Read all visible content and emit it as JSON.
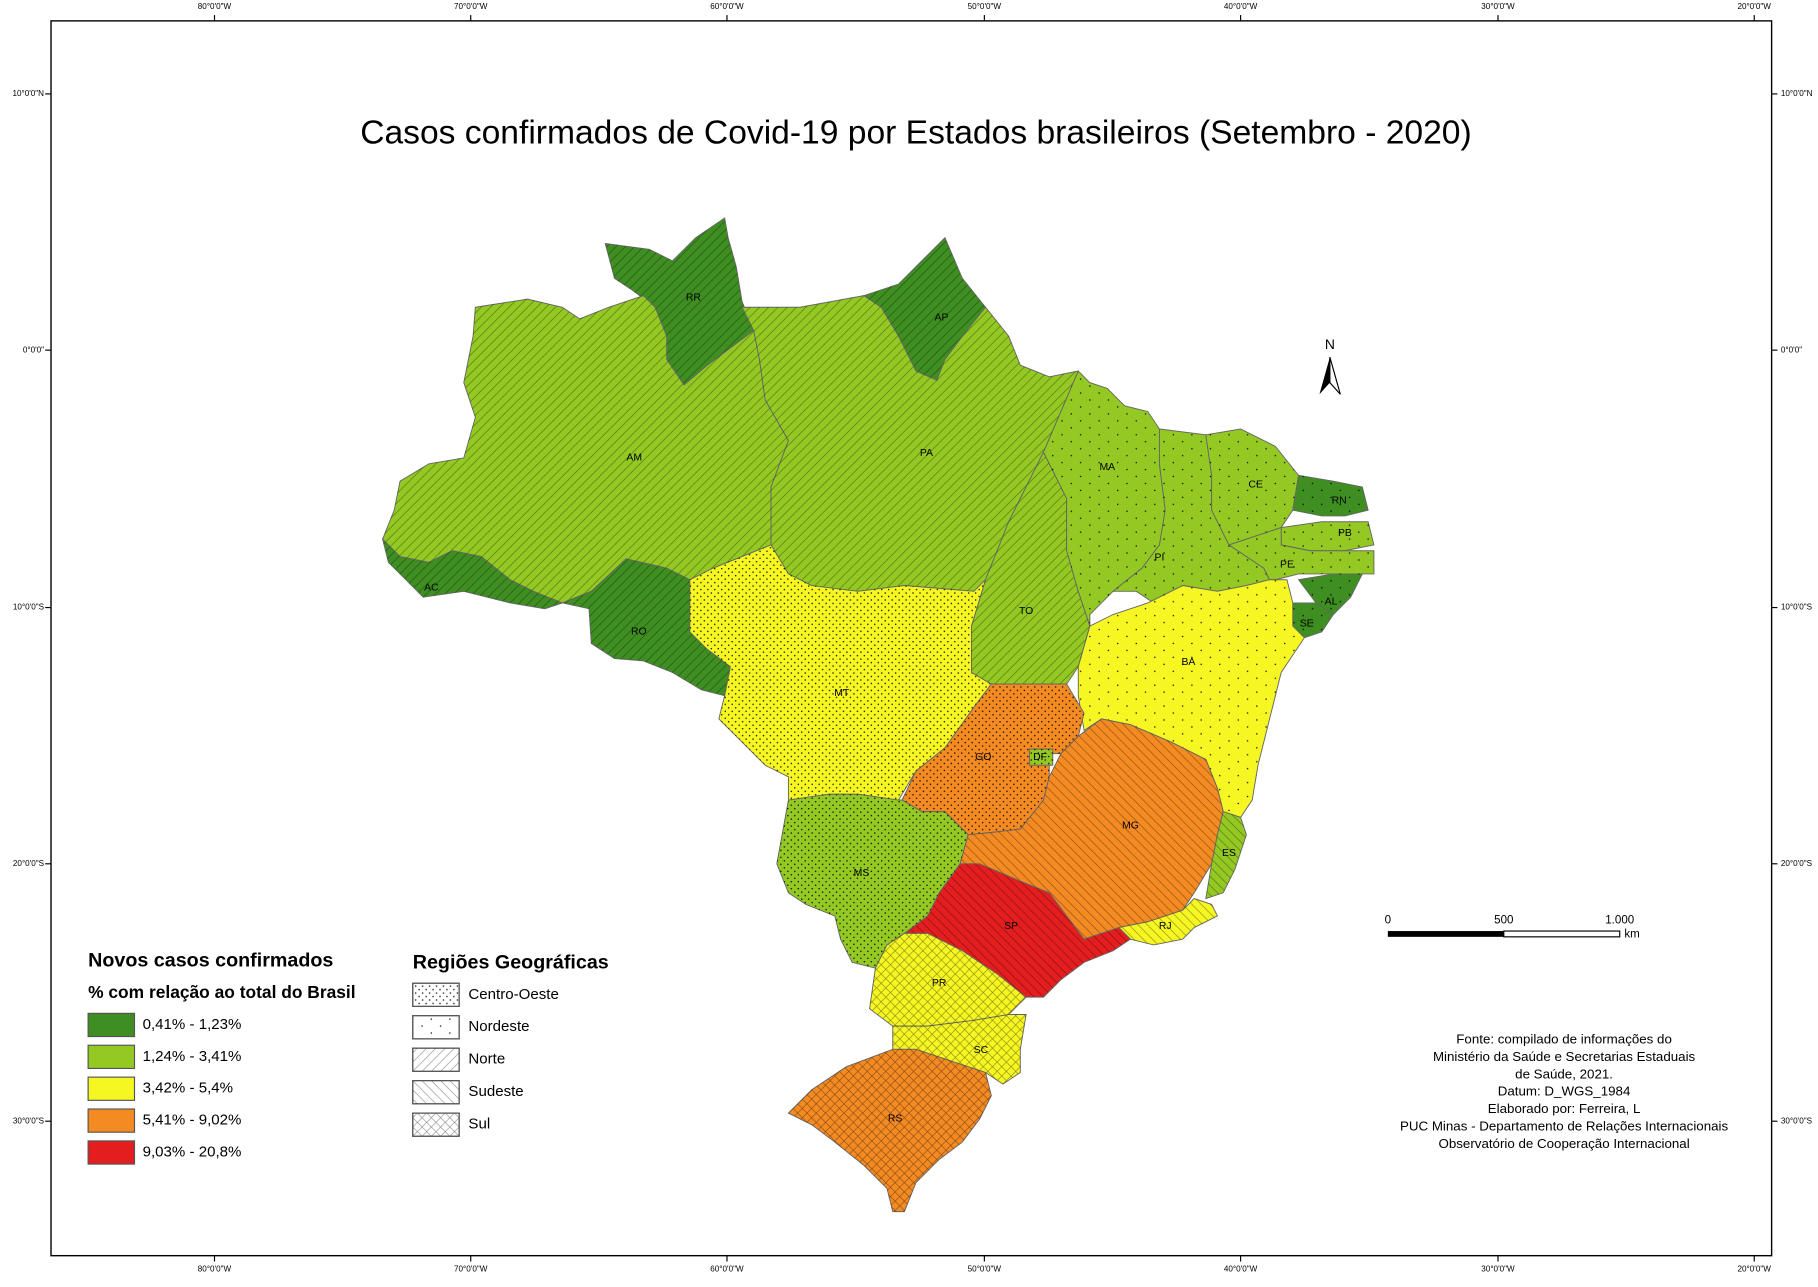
{
  "title": "Casos confirmados de Covid-19 por Estados brasileiros (Setembro - 2020)",
  "graticule": {
    "longitudes": [
      "80°0'0\"W",
      "70°0'0\"W",
      "60°0'0\"W",
      "50°0'0\"W",
      "40°0'0\"W",
      "30°0'0\"W",
      "20°0'0\"W"
    ],
    "latitudes": [
      "10°0'0\"N",
      "0°0'0\"",
      "10°0'0\"S",
      "20°0'0\"S",
      "30°0'0\"S"
    ]
  },
  "legend": {
    "title": "Novos casos confirmados",
    "subtitle": "% com relação ao total do Brasil",
    "items": [
      {
        "label": "0,41% - 1,23%",
        "color": "#3e8e22"
      },
      {
        "label": "1,24% - 3,41%",
        "color": "#93c922"
      },
      {
        "label": "3,42% - 5,4%",
        "color": "#f6f622"
      },
      {
        "label": "5,41% - 9,02%",
        "color": "#f48a22"
      },
      {
        "label": "9,03% - 20,8%",
        "color": "#e41e1e"
      }
    ]
  },
  "regions_legend": {
    "title": "Regiões Geográficas",
    "items": [
      "Centro-Oeste",
      "Nordeste",
      "Norte",
      "Sudeste",
      "Sul"
    ]
  },
  "states": [
    {
      "label": "RR",
      "class": 0,
      "region": 2
    },
    {
      "label": "AP",
      "class": 0,
      "region": 2
    },
    {
      "label": "AM",
      "class": 1,
      "region": 2
    },
    {
      "label": "PA",
      "class": 1,
      "region": 2
    },
    {
      "label": "AC",
      "class": 0,
      "region": 2
    },
    {
      "label": "RO",
      "class": 0,
      "region": 2
    },
    {
      "label": "MT",
      "class": 2,
      "region": 0
    },
    {
      "label": "TO",
      "class": 1,
      "region": 2
    },
    {
      "label": "MA",
      "class": 1,
      "region": 1
    },
    {
      "label": "PI",
      "class": 1,
      "region": 1
    },
    {
      "label": "CE",
      "class": 1,
      "region": 1
    },
    {
      "label": "RN",
      "class": 0,
      "region": 1
    },
    {
      "label": "PB",
      "class": 1,
      "region": 1
    },
    {
      "label": "PE",
      "class": 1,
      "region": 1
    },
    {
      "label": "AL",
      "class": 0,
      "region": 1
    },
    {
      "label": "SE",
      "class": 0,
      "region": 1
    },
    {
      "label": "BA",
      "class": 2,
      "region": 1
    },
    {
      "label": "GO",
      "class": 3,
      "region": 0
    },
    {
      "label": "DF",
      "class": 1,
      "region": 0
    },
    {
      "label": "MG",
      "class": 3,
      "region": 3
    },
    {
      "label": "ES",
      "class": 1,
      "region": 3
    },
    {
      "label": "RJ",
      "class": 2,
      "region": 3
    },
    {
      "label": "SP",
      "class": 4,
      "region": 3
    },
    {
      "label": "MS",
      "class": 1,
      "region": 0
    },
    {
      "label": "PR",
      "class": 2,
      "region": 4
    },
    {
      "label": "SC",
      "class": 2,
      "region": 4
    },
    {
      "label": "RS",
      "class": 3,
      "region": 4
    }
  ],
  "north_arrow": "N",
  "scale_bar": {
    "labels": [
      "0",
      "500",
      "1.000"
    ],
    "unit": "km"
  },
  "source": [
    "Fonte: compilado de informações do",
    "Ministério da Saúde e Secretarias Estaduais",
    "de Saúde, 2021.",
    "Datum: D_WGS_1984",
    "Elaborado por: Ferreira, L",
    "PUC Minas - Departamento de Relações Internacionais",
    "Observatório de Cooperação Internacional"
  ]
}
